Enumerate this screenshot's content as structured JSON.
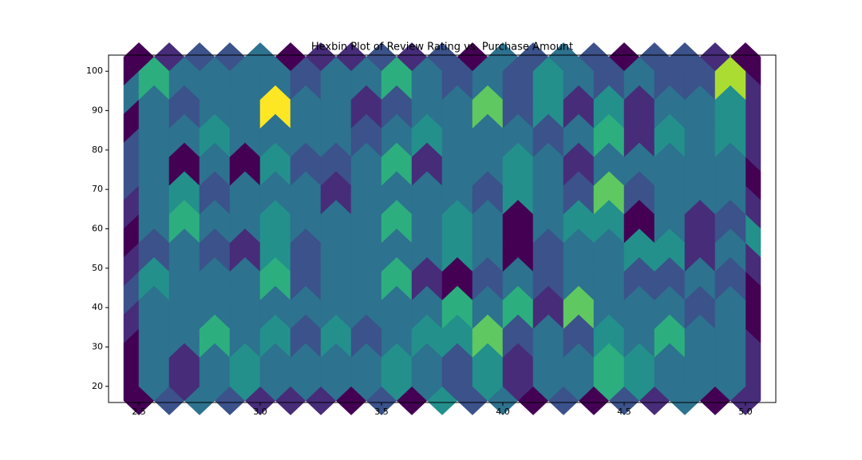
{
  "chart_data": {
    "type": "hexbin",
    "title": "Hexbin Plot of Review Rating vs. Purchase Amount",
    "cmap": "viridis",
    "gridsize": 20,
    "extent": [
      2.5,
      5.0,
      20,
      100
    ],
    "xlim": [
      2.375,
      5.125
    ],
    "ylim": [
      15.9,
      104.1
    ],
    "xticks": [
      2.5,
      {
        "value": 3,
        "label": "3.0"
      },
      3.5,
      {
        "value": 4,
        "label": "4.0"
      },
      4.5,
      {
        "value": 5,
        "label": "5.0"
      }
    ],
    "yticks": [
      20,
      30,
      40,
      50,
      60,
      70,
      80,
      90,
      100
    ],
    "counts": [
      [
        0,
        1,
        2,
        2,
        3,
        0,
        1,
        1,
        2,
        1,
        2,
        0,
        3,
        2,
        3,
        2,
        0,
        2,
        2,
        1,
        0
      ],
      [
        3,
        1,
        2,
        3,
        4,
        1,
        3,
        2,
        3,
        3,
        4,
        4,
        4,
        3,
        4,
        3,
        3,
        3,
        4,
        3,
        1
      ],
      [
        0,
        4,
        3,
        3,
        2,
        1,
        4,
        4,
        3,
        0,
        0,
        5,
        3,
        3,
        1,
        3,
        3,
        1,
        3,
        3,
        1
      ],
      [
        2,
        0,
        3,
        3,
        5,
        3,
        1,
        2,
        3,
        3,
        3,
        3,
        4,
        3,
        3,
        3,
        3,
        2,
        3,
        3,
        1
      ],
      [
        2,
        3,
        3,
        0,
        3,
        3,
        7,
        3,
        3,
        0,
        4,
        2,
        3,
        3,
        2,
        3,
        3,
        3,
        4,
        4,
        0
      ],
      [
        1,
        3,
        3,
        3,
        1,
        3,
        3,
        4,
        2,
        3,
        2,
        2,
        3,
        3,
        4,
        3,
        3,
        4,
        2,
        2,
        1
      ],
      [
        0,
        3,
        4,
        1,
        2,
        3,
        5,
        3,
        3,
        2,
        4,
        3,
        2,
        3,
        3,
        4,
        3,
        3,
        2,
        4,
        4
      ],
      [
        1,
        4,
        3,
        5,
        3,
        3,
        2,
        4,
        3,
        3,
        3,
        3,
        2,
        3,
        3,
        3,
        3,
        3,
        2,
        2,
        1
      ],
      [
        2,
        4,
        4,
        2,
        0,
        3,
        3,
        4,
        4,
        2,
        4,
        4,
        3,
        1,
        2,
        3,
        1,
        2,
        2,
        3,
        0
      ],
      [
        1,
        2,
        3,
        2,
        2,
        3,
        4,
        3,
        3,
        2,
        4,
        3,
        3,
        3,
        3,
        3,
        2,
        3,
        3,
        3,
        0
      ],
      [
        0,
        3,
        3,
        3,
        4,
        3,
        3,
        2,
        3,
        5,
        3,
        3,
        3,
        2,
        3,
        2,
        3,
        3,
        4,
        2,
        1
      ],
      [
        0,
        2,
        3,
        2,
        1,
        1,
        1,
        0,
        2,
        0,
        4,
        2,
        3,
        0,
        2,
        0,
        2,
        1,
        3,
        0,
        1
      ]
    ],
    "offset_counts": [
      [
        5,
        3,
        3,
        3,
        3,
        2,
        3,
        3,
        5,
        3,
        2,
        3,
        2,
        4,
        3,
        2,
        3,
        2,
        2,
        7
      ],
      [
        3,
        2,
        3,
        3,
        8,
        3,
        3,
        1,
        2,
        3,
        3,
        6,
        2,
        4,
        1,
        4,
        1,
        3,
        3,
        4
      ],
      [
        3,
        3,
        4,
        3,
        3,
        3,
        3,
        2,
        3,
        4,
        3,
        3,
        3,
        2,
        3,
        5,
        1,
        4,
        3,
        4
      ],
      [
        3,
        0,
        3,
        0,
        4,
        2,
        2,
        3,
        5,
        1,
        3,
        3,
        4,
        3,
        1,
        3,
        3,
        3,
        3,
        3
      ],
      [
        3,
        4,
        2,
        3,
        3,
        3,
        1,
        3,
        3,
        3,
        3,
        2,
        4,
        3,
        2,
        6,
        2,
        3,
        3,
        3
      ],
      [
        3,
        5,
        3,
        3,
        4,
        3,
        3,
        3,
        5,
        3,
        4,
        3,
        0,
        3,
        4,
        4,
        0,
        3,
        1,
        2
      ],
      [
        2,
        3,
        2,
        1,
        4,
        2,
        3,
        3,
        3,
        3,
        4,
        3,
        0,
        2,
        3,
        3,
        4,
        4,
        1,
        3
      ],
      [
        4,
        3,
        3,
        3,
        5,
        2,
        3,
        3,
        5,
        1,
        0,
        2,
        3,
        2,
        3,
        3,
        2,
        2,
        3,
        2
      ],
      [
        3,
        3,
        3,
        3,
        3,
        3,
        3,
        3,
        3,
        3,
        5,
        3,
        5,
        1,
        6,
        3,
        3,
        3,
        2,
        3
      ],
      [
        3,
        3,
        5,
        3,
        4,
        2,
        4,
        2,
        3,
        4,
        4,
        6,
        2,
        3,
        2,
        4,
        3,
        5,
        3,
        3
      ],
      [
        3,
        1,
        3,
        4,
        3,
        3,
        3,
        3,
        4,
        3,
        2,
        4,
        1,
        3,
        3,
        5,
        4,
        3,
        3,
        3
      ]
    ]
  }
}
